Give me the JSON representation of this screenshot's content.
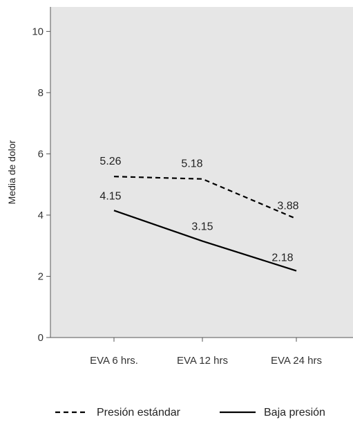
{
  "chart_data": {
    "type": "line",
    "title": "",
    "xlabel": "",
    "ylabel": "Media de dolor",
    "categories": [
      "EVA 6 hrs.",
      "EVA 12 hrs",
      "EVA 24 hrs"
    ],
    "ylim": [
      0,
      10.8
    ],
    "yticks": [
      0,
      2,
      4,
      6,
      8,
      10
    ],
    "grid": false,
    "legend_position": "bottom",
    "series": [
      {
        "name": "Presión estándar",
        "values": [
          5.26,
          5.18,
          3.88
        ],
        "labels": [
          "5.26",
          "5.18",
          "3.88"
        ],
        "line_style": "dashed",
        "color": "#000000"
      },
      {
        "name": "Baja presión",
        "values": [
          4.15,
          3.15,
          2.18
        ],
        "labels": [
          "4.15",
          "3.15",
          "2.18"
        ],
        "line_style": "solid",
        "color": "#000000"
      }
    ]
  },
  "colors": {
    "plot_background": "#e6e6e6",
    "axis": "#555555"
  }
}
